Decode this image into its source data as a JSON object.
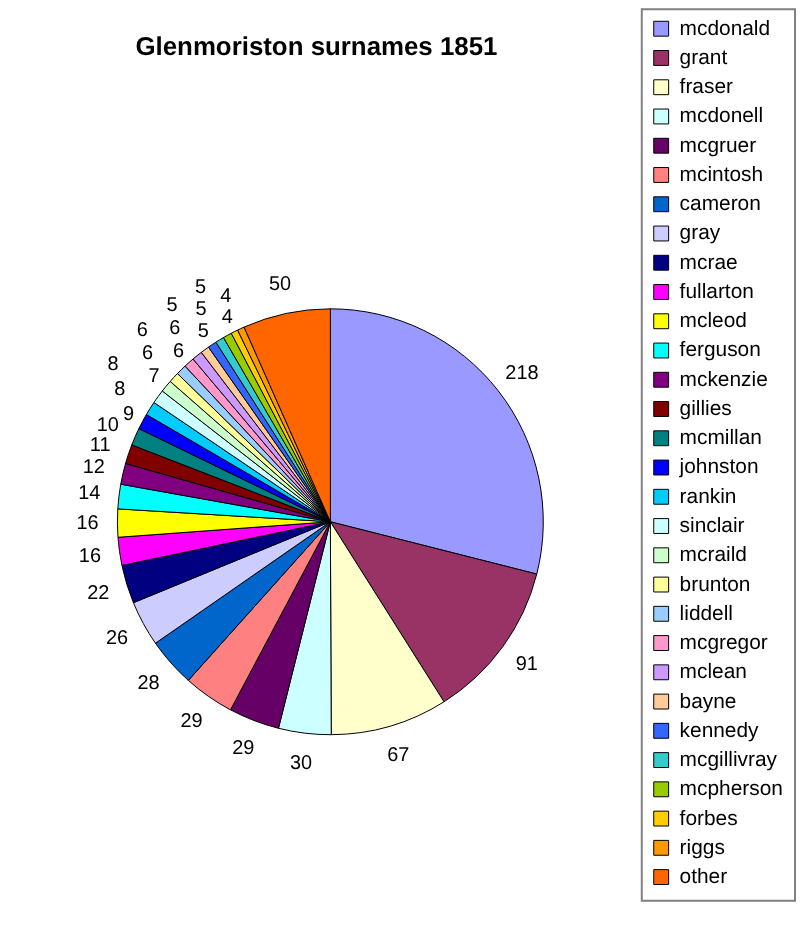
{
  "chart_data": {
    "type": "pie",
    "title": "Glenmoriston surnames 1851",
    "categories": [
      "mcdonald",
      "grant",
      "fraser",
      "mcdonell",
      "mcgruer",
      "mcintosh",
      "cameron",
      "gray",
      "mcrae",
      "fullarton",
      "mcleod",
      "ferguson",
      "mckenzie",
      "gillies",
      "mcmillan",
      "johnston",
      "rankin",
      "sinclair",
      "mcraild",
      "brunton",
      "liddell",
      "mcgregor",
      "mclean",
      "bayne",
      "kennedy",
      "mcgillivray",
      "mcpherson",
      "forbes",
      "riggs",
      "other"
    ],
    "values": [
      218,
      91,
      67,
      30,
      29,
      29,
      28,
      26,
      22,
      16,
      16,
      14,
      12,
      11,
      10,
      9,
      8,
      8,
      7,
      6,
      6,
      6,
      6,
      5,
      5,
      5,
      5,
      4,
      4,
      50
    ],
    "colors": [
      "#9999ff",
      "#993366",
      "#ffffcc",
      "#ccffff",
      "#660066",
      "#ff8080",
      "#0066cc",
      "#ccccff",
      "#000080",
      "#ff00ff",
      "#ffff00",
      "#00ffff",
      "#800080",
      "#800000",
      "#008080",
      "#0000ff",
      "#00ccff",
      "#ccffff",
      "#ccffcc",
      "#ffff99",
      "#99ccff",
      "#ff99cc",
      "#cc99ff",
      "#ffcc99",
      "#3366ff",
      "#33cccc",
      "#99cc00",
      "#ffcc00",
      "#ff9900",
      "#ff6600"
    ],
    "data_labels": true,
    "legend": "right"
  }
}
